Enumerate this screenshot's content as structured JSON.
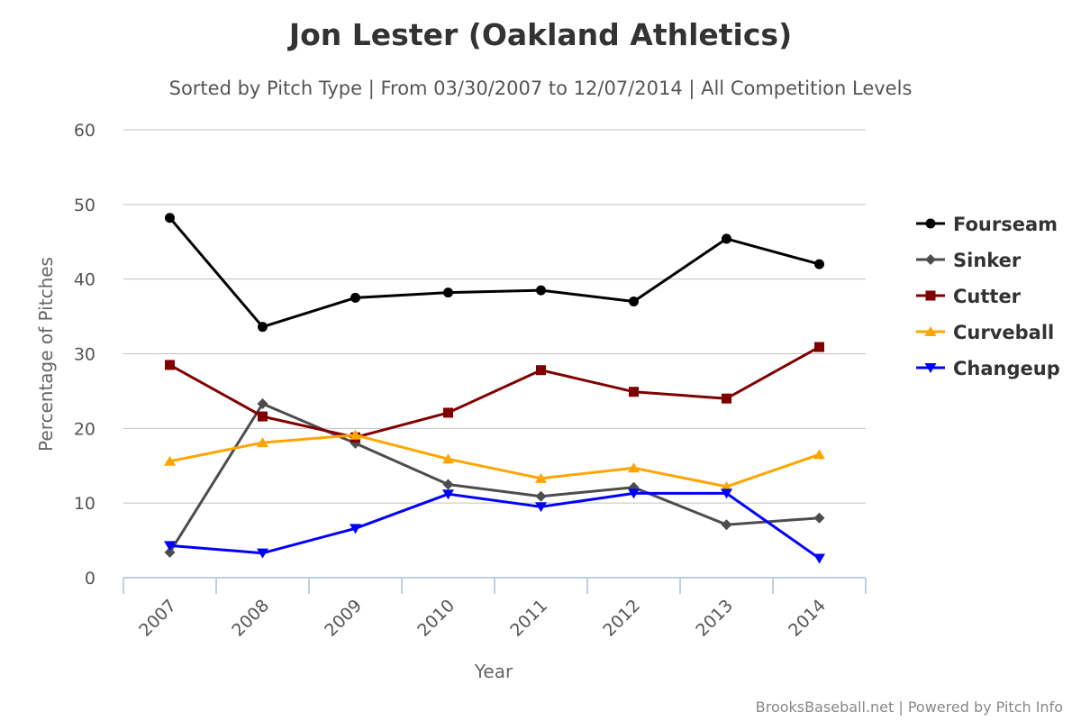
{
  "chart_data": {
    "type": "line",
    "title": "Jon Lester (Oakland Athletics)",
    "subtitle": "Sorted by Pitch Type | From 03/30/2007 to 12/07/2014 | All Competition Levels",
    "xlabel": "Year",
    "ylabel": "Percentage of Pitches",
    "categories": [
      "2007",
      "2008",
      "2009",
      "2010",
      "2011",
      "2012",
      "2013",
      "2014"
    ],
    "ylim": [
      0,
      60
    ],
    "yticks": [
      "0",
      "10",
      "20",
      "30",
      "40",
      "50",
      "60"
    ],
    "grid": true,
    "legend_position": "right",
    "series": [
      {
        "name": "Fourseam",
        "color": "#000000",
        "marker": "circle",
        "values": [
          48.2,
          33.6,
          37.5,
          38.2,
          38.5,
          37.0,
          45.4,
          42.0
        ]
      },
      {
        "name": "Sinker",
        "color": "#4d4d4d",
        "marker": "diamond",
        "values": [
          3.4,
          23.3,
          18.0,
          12.5,
          10.9,
          12.1,
          7.1,
          8.0
        ]
      },
      {
        "name": "Cutter",
        "color": "#800000",
        "marker": "square",
        "values": [
          28.5,
          21.6,
          18.8,
          22.1,
          27.8,
          24.9,
          24.0,
          30.9
        ]
      },
      {
        "name": "Curveball",
        "color": "#ffa500",
        "marker": "triangle",
        "values": [
          15.6,
          18.1,
          19.1,
          15.9,
          13.3,
          14.7,
          12.2,
          16.5
        ]
      },
      {
        "name": "Changeup",
        "color": "#0000ff",
        "marker": "triangle-down",
        "values": [
          4.3,
          3.3,
          6.6,
          11.2,
          9.5,
          11.3,
          11.3,
          2.6
        ]
      }
    ]
  },
  "credits": "BrooksBaseball.net | Powered by Pitch Info"
}
